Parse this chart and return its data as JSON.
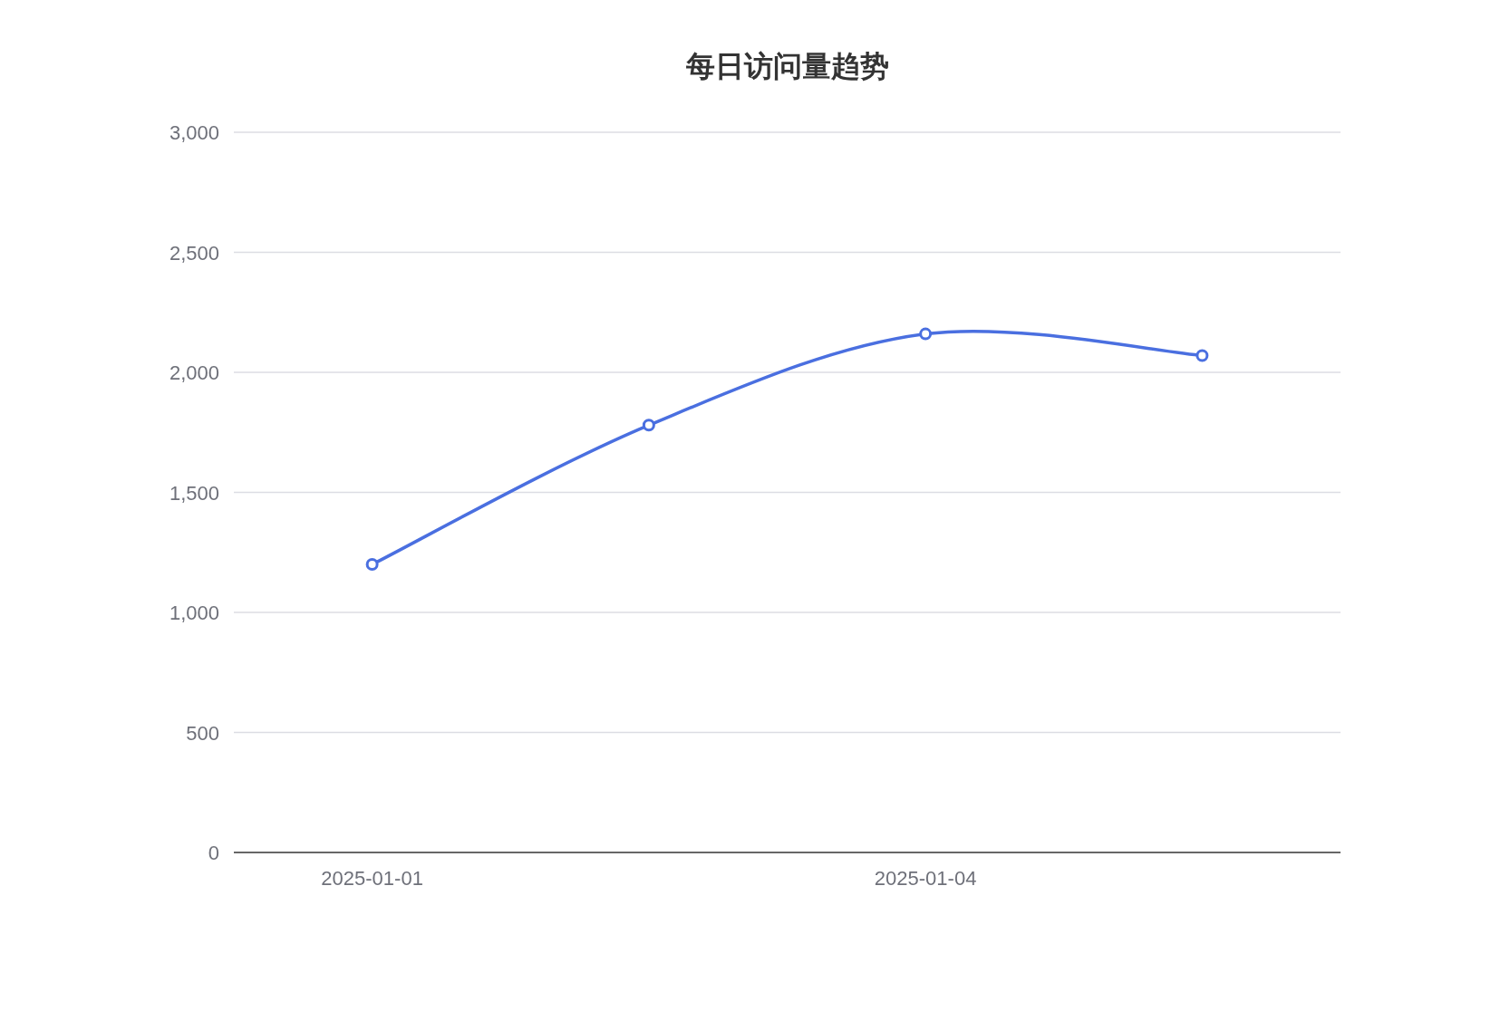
{
  "chart_data": {
    "type": "line",
    "title": "每日访问量趋势",
    "categories": [
      "2025-01-01",
      null,
      "2025-01-04",
      null
    ],
    "values": [
      1200,
      1780,
      2160,
      2070
    ],
    "color": "#4a6fe0",
    "marker": "circle",
    "grid": "y",
    "ylim": [
      0,
      3000
    ],
    "yticks": [
      0,
      500,
      {
        "value": 1000,
        "label": "1,000"
      },
      {
        "value": 1500,
        "label": "1,500"
      },
      {
        "value": 2000,
        "label": "2,000"
      },
      {
        "value": 2500,
        "label": "2,500"
      },
      {
        "value": 3000,
        "label": "3,000"
      }
    ]
  }
}
